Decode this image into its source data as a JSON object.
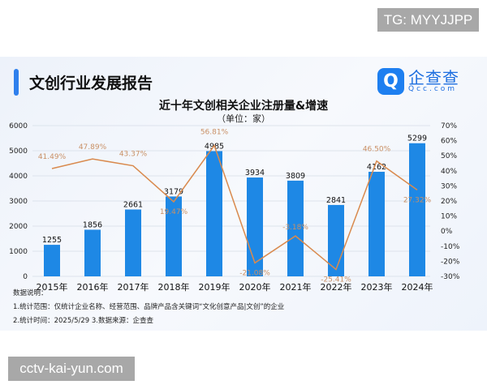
{
  "watermarks": {
    "top": "TG: MYYJJPP",
    "bottom": "cctv-kai-yun.com"
  },
  "header": {
    "title": "文创行业发展报告",
    "logo_cn": "企查查",
    "logo_en": "Qcc.com",
    "logo_icon": "qcc-logo-icon"
  },
  "colors": {
    "bar": "#1e88e5",
    "line": "#d98a4e",
    "label": "#c99065"
  },
  "chart_data": {
    "type": "bar",
    "title": "近十年文创相关企业注册量&增速",
    "subtitle": "（单位：家）",
    "categories": [
      "2015年",
      "2016年",
      "2017年",
      "2018年",
      "2019年",
      "2020年",
      "2021年",
      "2022年",
      "2023年",
      "2024年"
    ],
    "series": [
      {
        "type": "bar",
        "axis": "left",
        "values": [
          1255,
          1856,
          2661,
          3179,
          4985,
          3934,
          3809,
          2841,
          4162,
          5299
        ],
        "labels": [
          "1255",
          "1856",
          "2661",
          "3179",
          "4985",
          "3934",
          "3809",
          "2841",
          "4162",
          "5299"
        ]
      },
      {
        "type": "line",
        "axis": "right",
        "values": [
          41.49,
          47.89,
          43.37,
          19.47,
          56.81,
          -21.08,
          -3.18,
          -25.41,
          46.5,
          27.32
        ],
        "labels": [
          "41.49%",
          "47.89%",
          "43.37%",
          "19.47%",
          "56.81%",
          "-21.08%",
          "-3.18%",
          "-25.41%",
          "46.50%",
          "27.32%"
        ]
      }
    ],
    "ylim_left": [
      0,
      6000
    ],
    "yticks_left": [
      "0",
      "1000",
      "2000",
      "3000",
      "4000",
      "5000",
      "6000"
    ],
    "ylim_right": [
      -30,
      70
    ],
    "yticks_right": [
      "-30%",
      "-20%",
      "-10%",
      "0%",
      "10%",
      "20%",
      "30%",
      "40%",
      "50%",
      "60%",
      "70%"
    ],
    "grid": true
  },
  "notes": {
    "heading": "数据说明：",
    "line1": "1.统计范围：仅统计企业名称、经营范围、品牌产品含关键词“文化创意产品|文创”的企业",
    "line2": "2.统计时间：2025/5/29  3.数据来源：企查查"
  }
}
